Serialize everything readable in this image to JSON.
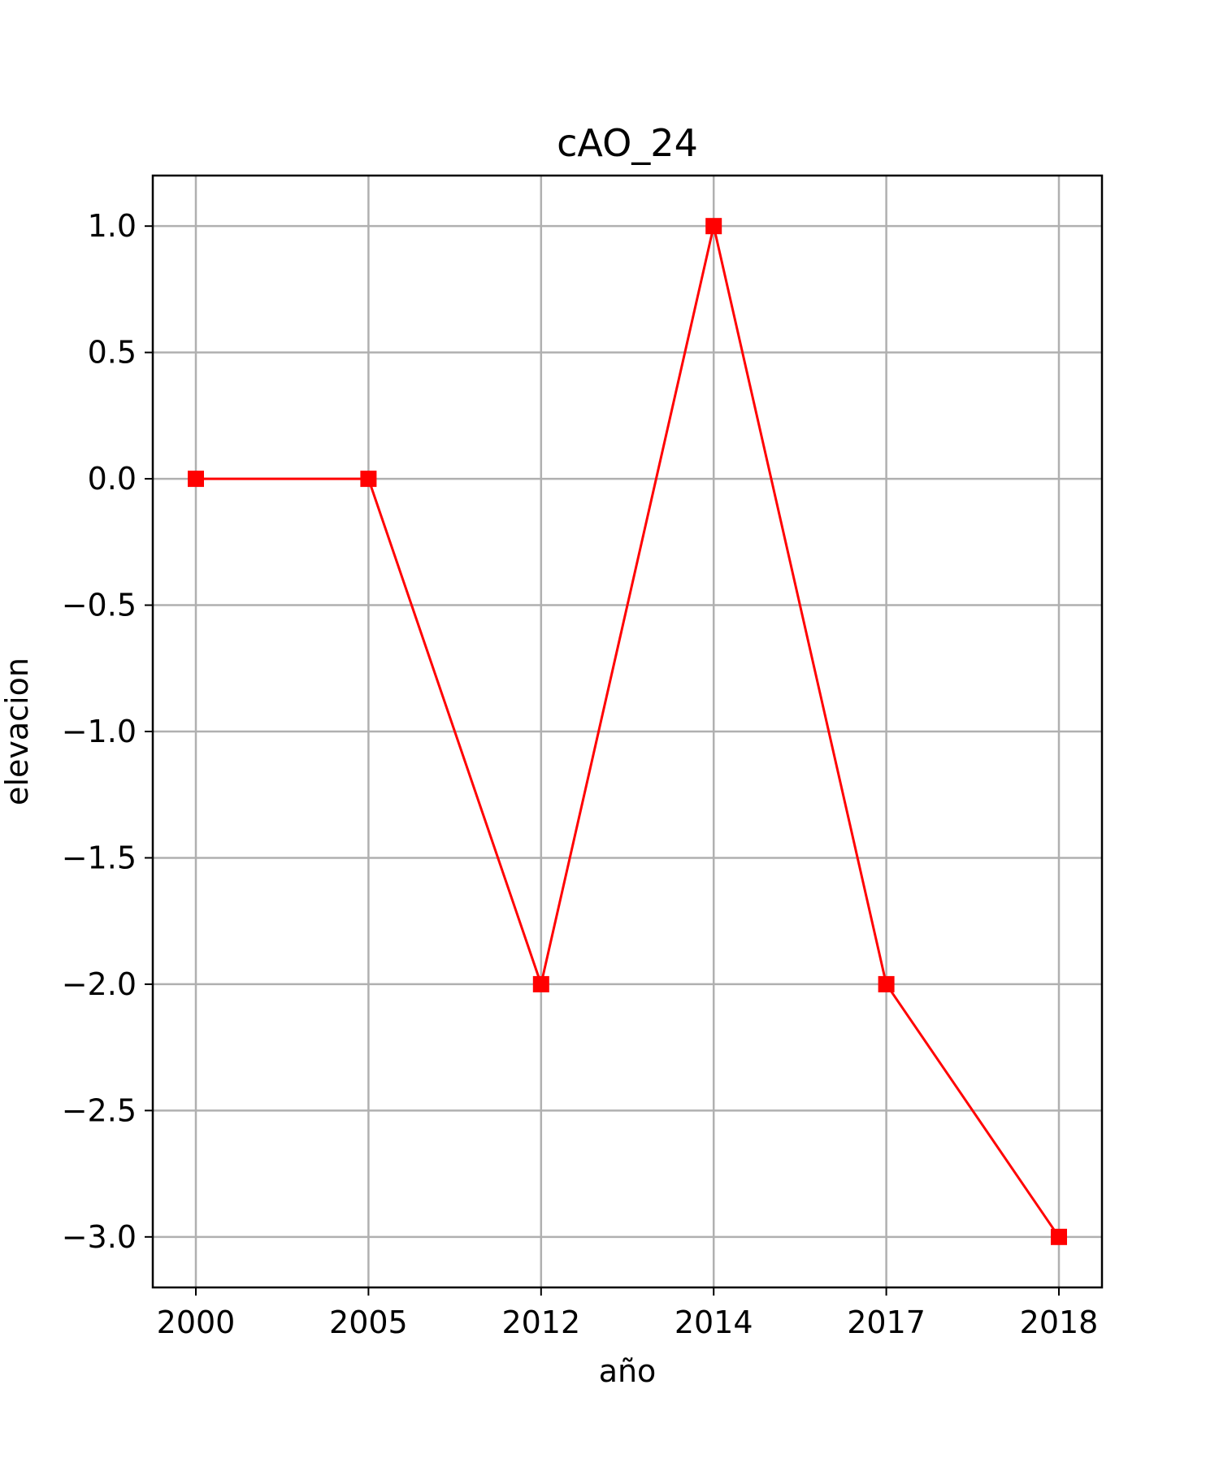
{
  "chart_data": {
    "type": "line",
    "title": "cAO_24",
    "xlabel": "año",
    "ylabel": "elevacion",
    "categories": [
      "2000",
      "2005",
      "2012",
      "2014",
      "2017",
      "2018"
    ],
    "series": [
      {
        "values": [
          0,
          0,
          -2,
          1,
          -2,
          -3
        ],
        "color": "#ff0000",
        "marker": "square"
      }
    ],
    "yticks": [
      "1.0",
      "0.5",
      "0.0",
      "−0.5",
      "−1.0",
      "−1.5",
      "−2.0",
      "−2.5",
      "−3.0"
    ],
    "ytick_values": [
      1.0,
      0.5,
      0.0,
      -0.5,
      -1.0,
      -1.5,
      -2.0,
      -2.5,
      -3.0
    ],
    "ylim": [
      -3.2,
      1.2
    ],
    "grid": true,
    "legend": "none"
  }
}
